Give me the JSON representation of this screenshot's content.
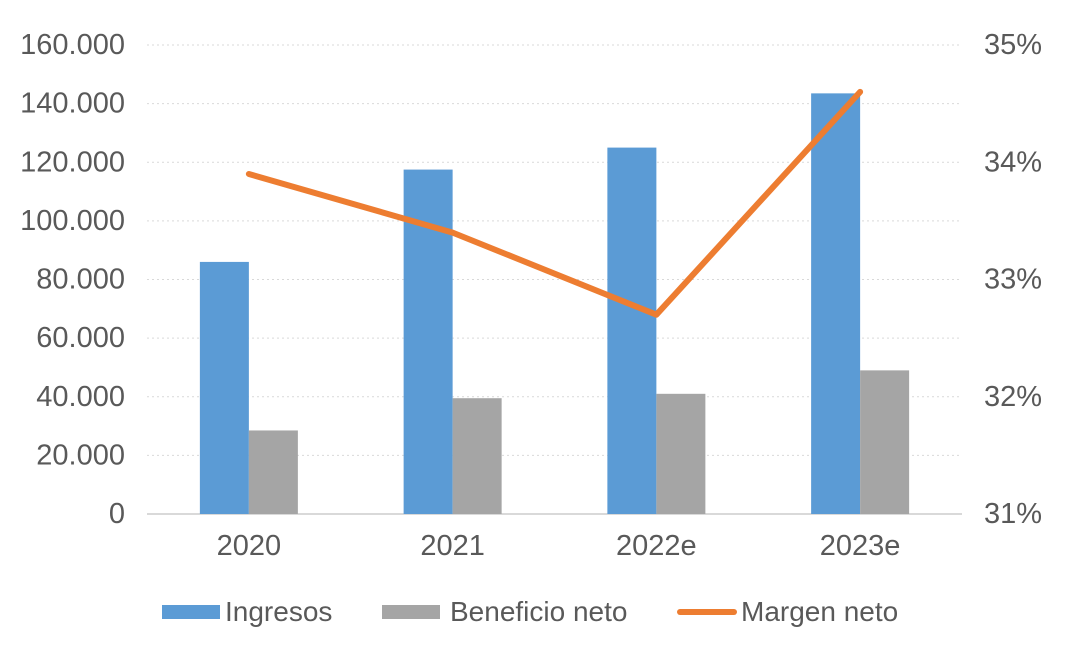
{
  "chart_data": {
    "type": "combo-bar-line",
    "title": "",
    "categories": [
      "2020",
      "2021",
      "2022e",
      "2023e"
    ],
    "series": [
      {
        "name": "Ingresos",
        "type": "bar",
        "axis": "left",
        "color": "#5B9BD5",
        "values": [
          86000,
          117500,
          125000,
          143500
        ]
      },
      {
        "name": "Beneficio neto",
        "type": "bar",
        "axis": "left",
        "color": "#A5A5A5",
        "values": [
          28500,
          39500,
          41000,
          49000
        ]
      },
      {
        "name": "Margen neto",
        "type": "line",
        "axis": "right",
        "color": "#ED7D31",
        "values": [
          33.9,
          33.4,
          32.7,
          34.6
        ]
      }
    ],
    "left_axis": {
      "min": 0,
      "max": 160000,
      "step": 20000,
      "tick_labels": [
        "0",
        "20.000",
        "40.000",
        "60.000",
        "80.000",
        "100.000",
        "120.000",
        "140.000",
        "160.000"
      ]
    },
    "right_axis": {
      "min": 31,
      "max": 35,
      "step": 1,
      "tick_labels": [
        "31%",
        "32%",
        "33%",
        "34%",
        "35%"
      ]
    },
    "grid": {
      "horizontal": true,
      "style": "dotted",
      "color": "#D9D9D9"
    },
    "axis_line_color": "#D9D9D9",
    "text_color": "#595959",
    "background": "#FFFFFF",
    "legend_position": "bottom"
  }
}
